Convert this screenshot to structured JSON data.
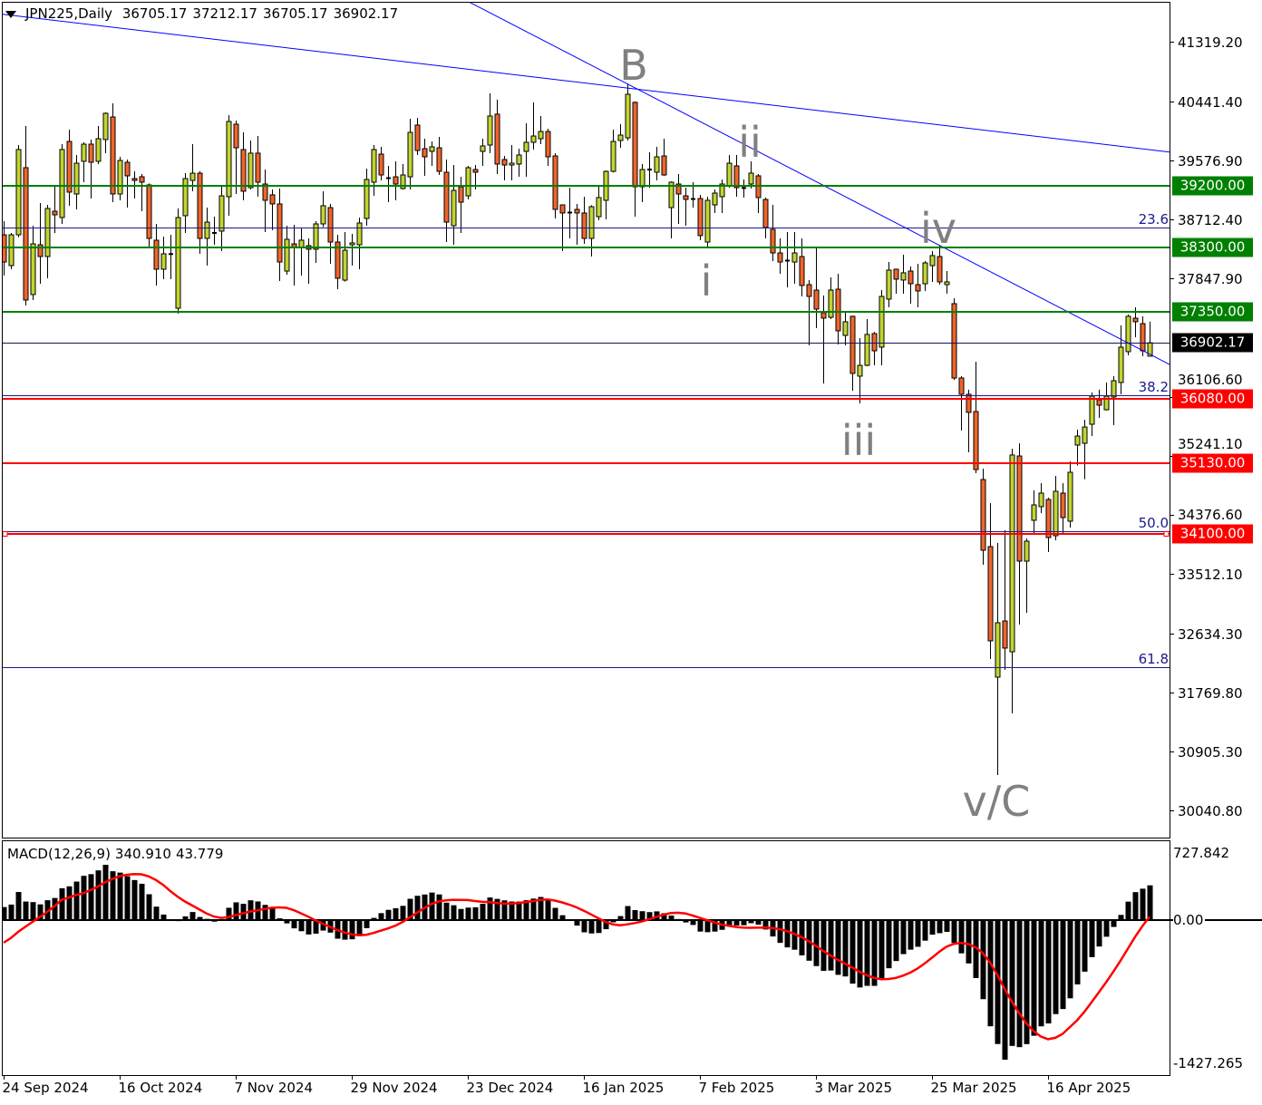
{
  "header": {
    "symbol_timeframe": "JPN225,Daily",
    "open": "36705.17",
    "high": "37212.17",
    "low": "36705.17",
    "close": "36902.17"
  },
  "colors": {
    "bull": "#c2d52e",
    "bear": "#f0652a",
    "support_level": "#008000",
    "resistance_level": "#ff0000",
    "trendline": "#0000ff",
    "fibonacci": "#1a1a8a",
    "current_price": "#000000",
    "macd_histogram": "#000000",
    "macd_signal": "#ff0000",
    "wave_label": "#808080"
  },
  "chart_data": {
    "type": "candlestick",
    "symbol": "JPN225",
    "timeframe": "Daily",
    "price_axis": {
      "range": [
        29800,
        41900
      ],
      "labels": [
        "41319.20",
        "40441.40",
        "39576.90",
        "38712.40",
        "37847.90",
        "36106.60",
        "35241.10",
        "34376.60",
        "33512.10",
        "32634.30",
        "31769.80",
        "30905.30",
        "30040.80"
      ]
    },
    "date_labels": [
      "24 Sep 2024",
      "16 Oct 2024",
      "7 Nov 2024",
      "29 Nov 2024",
      "23 Dec 2024",
      "16 Jan 2025",
      "7 Feb 2025",
      "3 Mar 2025",
      "25 Mar 2025",
      "16 Apr 2025"
    ],
    "ohlc_fields": [
      "open",
      "high",
      "low",
      "close"
    ],
    "ohlc": [
      [
        38486,
        38686,
        37888,
        38087
      ],
      [
        38034,
        38513,
        37981,
        38486
      ],
      [
        38486,
        39803,
        38450,
        39737
      ],
      [
        39471,
        40082,
        37449,
        37529
      ],
      [
        37609,
        38619,
        37529,
        38353
      ],
      [
        38340,
        38952,
        37768,
        38167
      ],
      [
        38167,
        38925,
        37848,
        38872
      ],
      [
        38832,
        39205,
        38513,
        38779
      ],
      [
        38739,
        39816,
        38646,
        39737
      ],
      [
        39856,
        40029,
        38912,
        39112
      ],
      [
        39085,
        39657,
        38859,
        39537
      ],
      [
        39564,
        39843,
        39258,
        39816
      ],
      [
        39816,
        39883,
        39019,
        39550
      ],
      [
        39564,
        40082,
        39524,
        39896
      ],
      [
        39883,
        40282,
        39684,
        40269
      ],
      [
        40215,
        40415,
        38965,
        39085
      ],
      [
        39085,
        39630,
        38992,
        39577
      ],
      [
        39550,
        39590,
        38885,
        39351
      ],
      [
        39311,
        39417,
        39019,
        39284
      ],
      [
        39338,
        39377,
        38832,
        39258
      ],
      [
        39218,
        39240,
        38300,
        38433
      ],
      [
        38407,
        38646,
        37742,
        37981
      ],
      [
        37981,
        38460,
        37835,
        38207
      ],
      [
        38207,
        38486,
        37835,
        38210
      ],
      [
        37409,
        38872,
        37330,
        38739
      ],
      [
        38766,
        39390,
        38513,
        39311
      ],
      [
        39284,
        39816,
        39125,
        39390
      ],
      [
        39390,
        39420,
        38207,
        38433
      ],
      [
        38433,
        38885,
        38034,
        38672
      ],
      [
        38513,
        38752,
        38340,
        38520
      ],
      [
        38540,
        39191,
        38247,
        39058
      ],
      [
        39045,
        40242,
        38766,
        40149
      ],
      [
        40109,
        40162,
        39085,
        39763
      ],
      [
        39737,
        39989,
        38992,
        39125
      ],
      [
        39178,
        39870,
        39152,
        39684
      ],
      [
        39684,
        39936,
        39045,
        39258
      ],
      [
        39231,
        39444,
        38527,
        38992
      ],
      [
        39072,
        39152,
        38553,
        38939
      ],
      [
        38939,
        39165,
        37808,
        38087
      ],
      [
        37954,
        38619,
        37900,
        38420
      ],
      [
        38353,
        38632,
        37742,
        38300
      ],
      [
        38300,
        38593,
        37888,
        38407
      ],
      [
        38327,
        38433,
        37768,
        38274
      ],
      [
        38274,
        38686,
        38074,
        38646
      ],
      [
        38646,
        39125,
        38600,
        38912
      ],
      [
        38885,
        38939,
        38061,
        38380
      ],
      [
        38380,
        38486,
        37688,
        37848
      ],
      [
        37821,
        38527,
        37800,
        38260
      ],
      [
        38340,
        38500,
        38034,
        38367
      ],
      [
        38340,
        38739,
        37981,
        38659
      ],
      [
        38726,
        39457,
        38620,
        39298
      ],
      [
        39258,
        39803,
        39058,
        39737
      ],
      [
        39670,
        39776,
        39284,
        39364
      ],
      [
        39324,
        39497,
        38965,
        39320
      ],
      [
        39337,
        39564,
        38992,
        39231
      ],
      [
        39165,
        39524,
        39150,
        39364
      ],
      [
        39337,
        40189,
        39152,
        39989
      ],
      [
        40096,
        40202,
        39657,
        39723
      ],
      [
        39750,
        39896,
        39351,
        39630
      ],
      [
        39710,
        39856,
        39497,
        39777
      ],
      [
        39763,
        39923,
        39364,
        39417
      ],
      [
        39404,
        39590,
        38380,
        38672
      ],
      [
        38619,
        39510,
        38340,
        39138
      ],
      [
        39191,
        39338,
        38513,
        38965
      ],
      [
        39058,
        39497,
        39005,
        39471
      ],
      [
        39444,
        39510,
        39152,
        39404
      ],
      [
        39710,
        39896,
        39497,
        39790
      ],
      [
        39803,
        40562,
        39684,
        40229
      ],
      [
        40256,
        40469,
        39377,
        39524
      ],
      [
        39590,
        39643,
        39284,
        39510
      ],
      [
        39510,
        39803,
        39284,
        39537
      ],
      [
        39524,
        39750,
        39338,
        39657
      ],
      [
        39710,
        40122,
        39338,
        39843
      ],
      [
        39843,
        40429,
        39737,
        39936
      ],
      [
        39896,
        40229,
        39816,
        40002
      ],
      [
        40002,
        40042,
        39497,
        39630
      ],
      [
        39643,
        39684,
        38726,
        38859
      ],
      [
        38925,
        38930,
        38247,
        38806
      ],
      [
        38819,
        39178,
        38433,
        38815
      ],
      [
        38859,
        38939,
        38340,
        38806
      ],
      [
        38806,
        39045,
        38354,
        38433
      ],
      [
        38433,
        38920,
        38167,
        38899
      ],
      [
        38752,
        39205,
        38700,
        39032
      ],
      [
        38992,
        39430,
        38712,
        39417
      ],
      [
        39417,
        40029,
        39400,
        39856
      ],
      [
        39870,
        40109,
        39763,
        39949
      ],
      [
        39909,
        40694,
        39870,
        40548
      ],
      [
        40429,
        40442,
        38752,
        39191
      ],
      [
        39191,
        39524,
        38965,
        39444
      ],
      [
        39444,
        39697,
        39178,
        39450
      ],
      [
        39404,
        39776,
        39284,
        39630
      ],
      [
        39643,
        39896,
        39351,
        39364
      ],
      [
        38885,
        39270,
        38433,
        39258
      ],
      [
        39231,
        39377,
        38646,
        39085
      ],
      [
        39058,
        39178,
        38620,
        39005
      ],
      [
        39005,
        39258,
        38885,
        39018
      ],
      [
        39018,
        39072,
        38407,
        38474
      ],
      [
        38380,
        39045,
        38300,
        38992
      ],
      [
        38925,
        39152,
        38806,
        39098
      ],
      [
        39045,
        39298,
        38806,
        39231
      ],
      [
        39205,
        39657,
        39178,
        39537
      ],
      [
        39497,
        39657,
        39045,
        39178
      ],
      [
        39180,
        39298,
        39032,
        39178
      ],
      [
        39231,
        39564,
        39165,
        39391
      ],
      [
        39351,
        39377,
        38806,
        39032
      ],
      [
        39005,
        39032,
        38433,
        38593
      ],
      [
        38566,
        38925,
        38101,
        38220
      ],
      [
        38220,
        38433,
        37915,
        38087
      ],
      [
        38110,
        38527,
        37715,
        38114
      ],
      [
        38087,
        38527,
        37768,
        38220
      ],
      [
        38167,
        38433,
        37582,
        37742
      ],
      [
        37755,
        37822,
        36864,
        37582
      ],
      [
        37675,
        38287,
        37117,
        37396
      ],
      [
        37343,
        37596,
        36305,
        37263
      ],
      [
        37276,
        37861,
        37250,
        37675
      ],
      [
        37688,
        37915,
        36877,
        37077
      ],
      [
        37010,
        37356,
        36864,
        37210
      ],
      [
        37290,
        37300,
        36199,
        36452
      ],
      [
        36412,
        36970,
        36013,
        36571
      ],
      [
        36571,
        37250,
        36558,
        37024
      ],
      [
        37037,
        37060,
        36571,
        36784
      ],
      [
        36837,
        37675,
        36571,
        37582
      ],
      [
        37542,
        38087,
        37423,
        37968
      ],
      [
        37981,
        37990,
        37622,
        37835
      ],
      [
        37822,
        38194,
        37622,
        37928
      ],
      [
        37954,
        38021,
        37476,
        37768
      ],
      [
        37755,
        38061,
        37423,
        37662
      ],
      [
        37768,
        38101,
        37662,
        38074
      ],
      [
        38034,
        38247,
        37795,
        38181
      ],
      [
        38167,
        38327,
        37755,
        37795
      ],
      [
        37755,
        37954,
        37622,
        37795
      ],
      [
        37476,
        37556,
        36359,
        36385
      ],
      [
        36385,
        36412,
        35613,
        36146
      ],
      [
        36146,
        36213,
        35294,
        35880
      ],
      [
        35893,
        36625,
        34989,
        35042
      ],
      [
        34895,
        35055,
        33645,
        33858
      ],
      [
        33911,
        34550,
        32262,
        32528
      ],
      [
        31996,
        33964,
        30560,
        32794
      ],
      [
        32820,
        34150,
        32102,
        32422
      ],
      [
        32368,
        35348,
        31464,
        35255
      ],
      [
        35241,
        35428,
        32767,
        33698
      ],
      [
        33698,
        34031,
        32940,
        33991
      ],
      [
        34297,
        34736,
        34097,
        34523
      ],
      [
        34497,
        34842,
        34403,
        34696
      ],
      [
        34603,
        34630,
        33831,
        34044
      ],
      [
        34071,
        34948,
        34004,
        34723
      ],
      [
        34696,
        34842,
        34097,
        34337
      ],
      [
        34284,
        35161,
        34191,
        35002
      ],
      [
        35401,
        35627,
        35100,
        35533
      ],
      [
        35427,
        35772,
        34900,
        35666
      ],
      [
        35706,
        36173,
        35533,
        36119
      ],
      [
        36066,
        36213,
        35800,
        35986
      ],
      [
        35919,
        36319,
        35910,
        36119
      ],
      [
        36106,
        36412,
        35693,
        36345
      ],
      [
        36319,
        37157,
        36146,
        36837
      ],
      [
        36771,
        37316,
        36717,
        37290
      ],
      [
        37263,
        37423,
        36983,
        37210
      ],
      [
        37183,
        37290,
        36704,
        36784
      ],
      [
        36705.17,
        37212.17,
        36705.17,
        36902.17
      ]
    ],
    "horizontal_levels": [
      {
        "price": 39200,
        "label": "39200.00",
        "kind": "support_level"
      },
      {
        "price": 38300,
        "label": "38300.00",
        "kind": "support_level"
      },
      {
        "price": 37350,
        "label": "37350.00",
        "kind": "support_level"
      },
      {
        "price": 36080,
        "label": "36080.00",
        "kind": "resistance_level"
      },
      {
        "price": 35130,
        "label": "35130.00",
        "kind": "resistance_level"
      },
      {
        "price": 34100,
        "label": "34100.00",
        "kind": "resistance_level",
        "selected": true
      }
    ],
    "current_price": {
      "price": 36902.17,
      "label": "36902.17"
    },
    "fibonacci": [
      {
        "level": "23.6",
        "price": 38593
      },
      {
        "level": "38.2",
        "price": 36129
      },
      {
        "level": "50.0",
        "price": 34137
      },
      {
        "level": "61.8",
        "price": 32145
      }
    ],
    "trendlines": [
      {
        "from": {
          "bar": 0,
          "price": 41720
        },
        "to": {
          "bar": 160,
          "price": 39710
        }
      },
      {
        "from": {
          "bar": 86,
          "price": 40700
        },
        "to": {
          "bar": 160,
          "price": 36625
        }
      }
    ],
    "wave_labels": [
      {
        "text": "B"
      },
      {
        "text": "i"
      },
      {
        "text": "ii"
      },
      {
        "text": "iii"
      },
      {
        "text": "iv"
      },
      {
        "text": "v/C"
      }
    ],
    "macd": {
      "title": "MACD(12,26,9)",
      "macd_value": "340.910",
      "signal_value": "43.779",
      "fast": 12,
      "slow": 26,
      "signal": 9,
      "range": [
        -1427.265,
        727.842
      ],
      "axis_labels": [
        "727.842",
        "0.00",
        "-1427.265"
      ]
    }
  }
}
